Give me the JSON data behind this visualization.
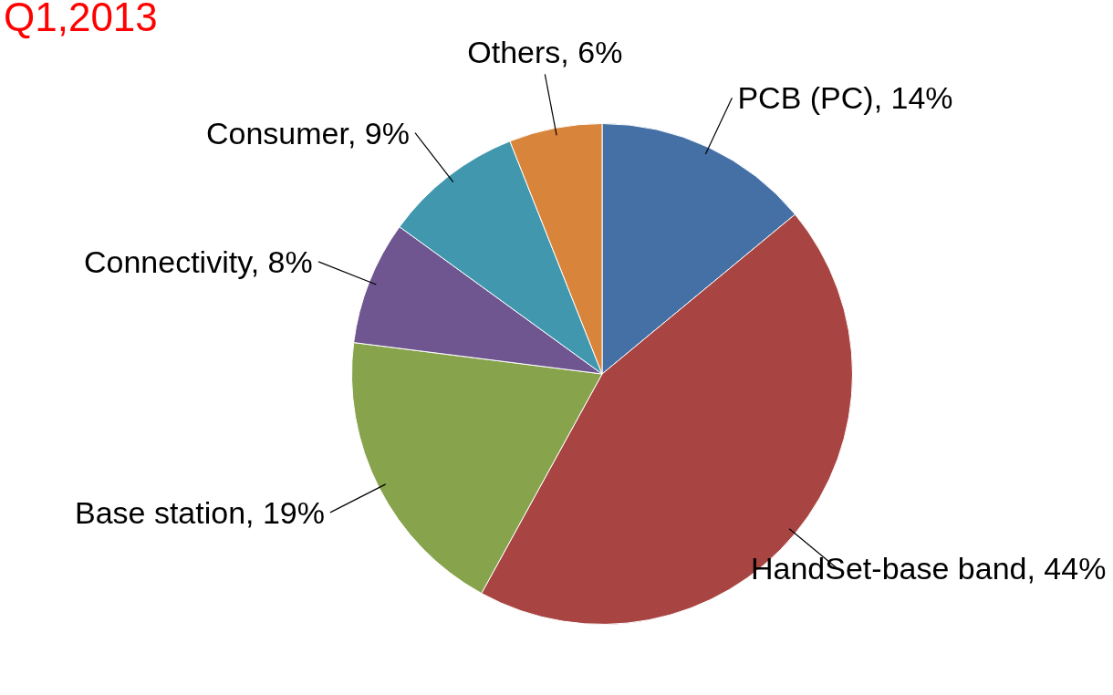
{
  "chart_data": {
    "type": "pie",
    "title": "Q1,2013",
    "categories": [
      "PCB (PC)",
      "HandSet-base band",
      "Base station",
      "Connectivity",
      "Consumer",
      "Others"
    ],
    "values": [
      14,
      44,
      19,
      8,
      9,
      6
    ],
    "value_labels": [
      "14%",
      "44%",
      "19%",
      "8%",
      "9%",
      "6%"
    ],
    "colors": [
      "#4470a5",
      "#a84542",
      "#87a34c",
      "#6f5690",
      "#4097ae",
      "#d9843b"
    ],
    "legend": false
  }
}
